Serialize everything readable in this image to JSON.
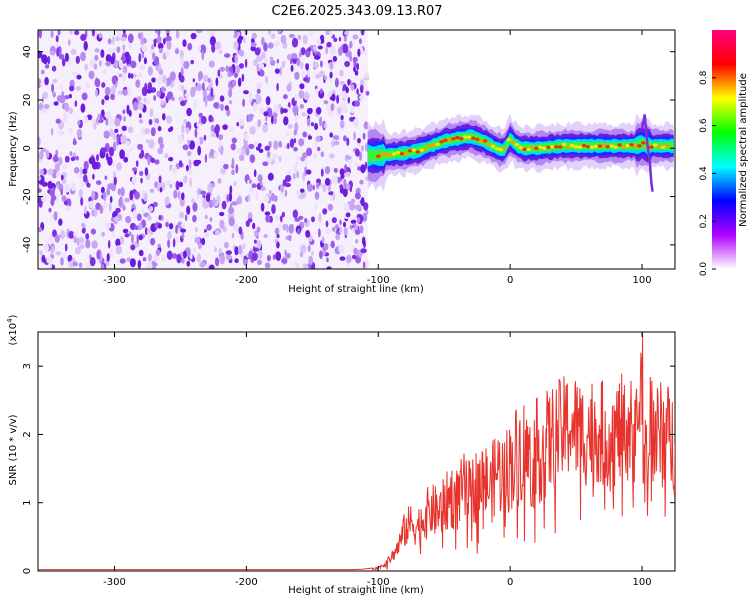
{
  "title": "C2E6.2025.343.09.13.R07",
  "chart_data": [
    {
      "type": "heatmap",
      "xlabel": "Height of straight line (km)",
      "ylabel": "Frequency (Hz)",
      "xlim": [
        -358,
        125
      ],
      "ylim": [
        -50,
        49
      ],
      "xticks": [
        -300,
        -200,
        -100,
        0,
        100
      ],
      "xtick_labels": [
        "-300",
        "-200",
        "-100",
        "0",
        "100"
      ],
      "yticks": [
        -40,
        -20,
        0,
        20,
        40
      ],
      "ytick_labels": [
        "-40",
        "-20",
        "0",
        "20",
        "40"
      ],
      "noise_region_x": [
        -358,
        -108
      ],
      "signal_region_x": [
        -108,
        125
      ],
      "signal_ridge": {
        "x": [
          -108,
          -100,
          -90,
          -80,
          -70,
          -60,
          -50,
          -40,
          -30,
          -20,
          -10,
          -5,
          0,
          5,
          10,
          20,
          40,
          60,
          80,
          95,
          100,
          105,
          115,
          125
        ],
        "y": [
          -3,
          -3,
          -2.5,
          -2,
          -1,
          1,
          3,
          4,
          5,
          3,
          0,
          -1,
          4,
          1,
          0,
          0,
          1,
          1,
          1,
          1,
          2,
          1,
          1,
          1
        ]
      },
      "colorbar": {
        "label": "Normalized spectral amplitude",
        "range": [
          0,
          1
        ],
        "ticks": [
          0.0,
          0.2,
          0.4,
          0.6,
          0.8
        ],
        "tick_labels": [
          "0.0",
          "0.2",
          "0.4",
          "0.6",
          "0.8"
        ],
        "colors": [
          "#ffffff",
          "#b000ff",
          "#0000ff",
          "#00ffff",
          "#00ff00",
          "#ffff00",
          "#ff0000",
          "#ff0080"
        ]
      },
      "grid": false
    },
    {
      "type": "line",
      "xlabel": "Height of straight line (km)",
      "ylabel": "SNR (10 * v/v)",
      "yscale_label": "(x10",
      "yscale_exp": "4",
      "yscale_close": ")",
      "xlim": [
        -358,
        125
      ],
      "ylim": [
        0,
        3.5
      ],
      "xticks": [
        -300,
        -200,
        -100,
        0,
        100
      ],
      "xtick_labels": [
        "-300",
        "-200",
        "-100",
        "0",
        "100"
      ],
      "yticks": [
        0,
        1,
        2,
        3
      ],
      "ytick_labels": [
        "0",
        "1",
        "2",
        "3"
      ],
      "line_color": "#e8322c",
      "series": [
        {
          "x": [
            -358,
            -300,
            -200,
            -120,
            -105,
            -100,
            -95,
            -90,
            -85,
            -80,
            -75,
            -70,
            -65,
            -60,
            -55,
            -50,
            -45,
            -40,
            -35,
            -30,
            -25,
            -20,
            -15,
            -10,
            -5,
            0,
            5,
            10,
            15,
            20,
            25,
            30,
            35,
            40,
            45,
            50,
            55,
            60,
            65,
            70,
            75,
            80,
            85,
            90,
            95,
            100,
            105,
            110,
            115,
            120,
            125
          ],
          "y": [
            0.02,
            0.02,
            0.02,
            0.02,
            0.03,
            0.05,
            0.1,
            0.2,
            0.35,
            0.6,
            0.7,
            0.65,
            0.8,
            0.9,
            0.85,
            0.95,
            1.1,
            1.05,
            1.2,
            1.1,
            1.3,
            1.35,
            1.2,
            1.5,
            1.4,
            1.55,
            1.7,
            1.8,
            1.6,
            1.75,
            1.8,
            1.9,
            2.0,
            2.05,
            2.15,
            2.1,
            2.0,
            2.05,
            2.1,
            2.0,
            1.95,
            2.0,
            2.1,
            2.05,
            2.0,
            2.05,
            2.1,
            2.0,
            2.0,
            1.95,
            1.85
          ]
        }
      ],
      "grid": false
    }
  ]
}
